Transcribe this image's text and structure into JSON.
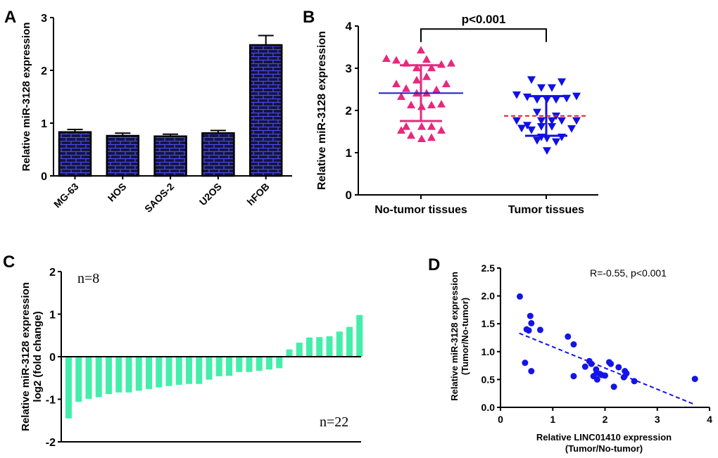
{
  "chart_data": [
    {
      "panel": "A",
      "type": "bar",
      "ylabel": "Relative miR-3128 expression",
      "ylim": [
        0,
        3
      ],
      "yticks": [
        0,
        1,
        2,
        3
      ],
      "categories": [
        "MG-63",
        "HOS",
        "SAOS-2",
        "U2OS",
        "hFOB"
      ],
      "values": [
        0.83,
        0.76,
        0.75,
        0.81,
        2.48
      ],
      "errors": [
        0.05,
        0.05,
        0.04,
        0.05,
        0.18
      ],
      "colors": {
        "fill": "#14143c",
        "pattern": "#4a4af0"
      }
    },
    {
      "panel": "B",
      "type": "scatter",
      "ylabel": "Relative miR-3128 expression",
      "ylim": [
        0,
        4
      ],
      "yticks": [
        0,
        1,
        2,
        3,
        4
      ],
      "categories": [
        "No-tumor tissues",
        "Tumor tissues"
      ],
      "annotation": "p<0.001",
      "groups": [
        {
          "values": [
            3.23,
            3.19,
            3.12,
            3.01,
            3.43,
            3.21,
            3.01,
            3.09,
            3.12,
            2.8,
            2.72,
            2.63,
            2.63,
            2.52,
            2.49,
            2.41,
            2.41,
            2.33,
            2.13,
            2.09,
            2.13,
            2.15,
            1.62,
            1.62,
            1.62,
            1.53,
            1.53,
            1.41,
            1.33,
            1.36
          ],
          "mean": 2.41,
          "sd_low": 1.75,
          "sd_high": 3.07,
          "marker": "triangle-up",
          "color": "#e8287c",
          "mean_color": "#1a1ad0"
        },
        {
          "values": [
            2.73,
            2.68,
            2.54,
            2.54,
            2.37,
            2.32,
            2.26,
            2.26,
            2.26,
            2.29,
            2.34,
            1.96,
            1.87,
            1.76,
            1.76,
            1.76,
            1.76,
            1.76,
            1.65,
            1.58,
            1.54,
            1.62,
            1.62,
            1.57,
            1.29,
            1.34,
            1.26,
            1.37,
            1.37,
            1.05
          ],
          "mean": 1.87,
          "sd_low": 1.4,
          "sd_high": 2.34,
          "marker": "triangle-down",
          "color": "#1010e6",
          "mean_color": "#f01818"
        }
      ]
    },
    {
      "panel": "C",
      "type": "bar",
      "ylabel": [
        "Relative miR-3128 expression",
        "log2 (fold change)"
      ],
      "ylim": [
        -2,
        2
      ],
      "yticks": [
        -2,
        -1,
        0,
        1,
        2
      ],
      "values": [
        -1.45,
        -1.06,
        -0.99,
        -0.95,
        -0.88,
        -0.84,
        -0.84,
        -0.8,
        -0.76,
        -0.72,
        -0.69,
        -0.66,
        -0.64,
        -0.64,
        -0.54,
        -0.46,
        -0.45,
        -0.36,
        -0.36,
        -0.33,
        -0.3,
        -0.27,
        0.17,
        0.33,
        0.45,
        0.46,
        0.48,
        0.59,
        0.7,
        0.98
      ],
      "annotations": [
        "n=8",
        "n=22"
      ],
      "color": "#44eeaa"
    },
    {
      "panel": "D",
      "type": "scatter",
      "xlabel": [
        "Relative LINC01410 expression",
        "(Tumor/No-tumor)"
      ],
      "ylabel": [
        "Relative miR-3128 expression",
        "(Tumor/No-tumor)"
      ],
      "xlim": [
        0,
        4
      ],
      "ylim": [
        0,
        2.5
      ],
      "xticks": [
        "0",
        "1",
        "2",
        "3",
        "4"
      ],
      "yticks": [
        "0.0",
        "0.5",
        "1.0",
        "1.5",
        "2.0",
        "2.5"
      ],
      "annotation": "R=-0.55, p<0.001",
      "points": [
        [
          0.37,
          1.99
        ],
        [
          0.57,
          1.64
        ],
        [
          0.59,
          1.51
        ],
        [
          0.5,
          1.4
        ],
        [
          0.54,
          1.38
        ],
        [
          0.76,
          1.39
        ],
        [
          1.29,
          1.27
        ],
        [
          1.4,
          1.13
        ],
        [
          0.47,
          0.8
        ],
        [
          0.59,
          0.65
        ],
        [
          1.4,
          0.56
        ],
        [
          1.62,
          0.73
        ],
        [
          1.7,
          0.83
        ],
        [
          1.74,
          0.78
        ],
        [
          1.83,
          0.68
        ],
        [
          1.78,
          0.56
        ],
        [
          1.85,
          0.5
        ],
        [
          1.84,
          0.62
        ],
        [
          1.9,
          0.6
        ],
        [
          1.94,
          0.58
        ],
        [
          2.0,
          0.57
        ],
        [
          2.08,
          0.81
        ],
        [
          2.11,
          0.78
        ],
        [
          2.17,
          0.37
        ],
        [
          2.26,
          0.72
        ],
        [
          2.38,
          0.65
        ],
        [
          2.41,
          0.61
        ],
        [
          2.36,
          0.54
        ],
        [
          2.56,
          0.47
        ],
        [
          3.72,
          0.51
        ]
      ],
      "fit_line": [
        [
          0.36,
          1.33
        ],
        [
          3.72,
          0.05
        ]
      ],
      "color": "#1414e8"
    }
  ],
  "panel_labels": [
    "A",
    "B",
    "C",
    "D"
  ]
}
